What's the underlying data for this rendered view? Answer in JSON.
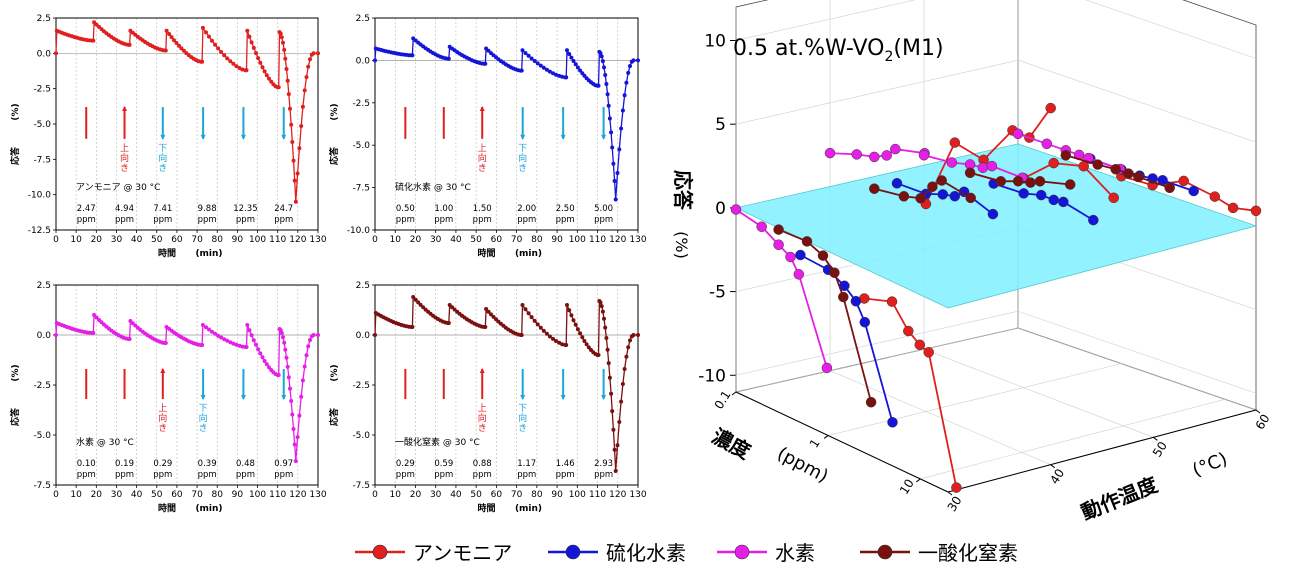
{
  "figure": {
    "legend": [
      {
        "label": "アンモニア",
        "color": "#e01f1f"
      },
      {
        "label": "硫化水素",
        "color": "#1515d8"
      },
      {
        "label": "水素",
        "color": "#e61fe6"
      },
      {
        "label": "一酸化窒素",
        "color": "#7a1111"
      }
    ]
  },
  "chart_data": [
    {
      "type": "line",
      "panel": "ammonia",
      "series": [
        {
          "name": "アンモニア @ 30 °C",
          "color": "#e01f1f"
        }
      ],
      "xlabel": "時間 (min)",
      "ylabel": "応答 (%)",
      "xlim": [
        0,
        130
      ],
      "ylim": [
        -12.5,
        2.5
      ],
      "xticks": [
        "0",
        "10",
        "20",
        "30",
        "40",
        "50",
        "60",
        "70",
        "80",
        "90",
        "100",
        "110",
        "120",
        "130"
      ],
      "yticks": [
        "2.5",
        "0.0",
        "-2.5",
        "-5.0",
        "-7.5",
        "-10.0",
        "-12.5"
      ],
      "inset_label": "アンモニア @ 30 °C",
      "concentrations": [
        "2.47",
        "4.94",
        "7.41",
        "9.88",
        "12.35",
        "24.7"
      ],
      "conc_unit": "ppm",
      "peaks": [
        1.6,
        2.2,
        1.6,
        1.6,
        1.8,
        1.6,
        1.5
      ],
      "ends": [
        0.9,
        0.6,
        0.2,
        -0.6,
        -1.2,
        -2.4,
        -10.5
      ],
      "arrows": [
        {
          "dir": "bar"
        },
        {
          "dir": "up",
          "label": "上向き"
        },
        {
          "dir": "down",
          "label": "下向き"
        },
        {
          "dir": "down"
        },
        {
          "dir": "down"
        },
        {
          "dir": "down"
        }
      ]
    },
    {
      "type": "line",
      "panel": "h2s",
      "series": [
        {
          "name": "硫化水素 @ 30 °C",
          "color": "#1515d8"
        }
      ],
      "xlabel": "時間 (min)",
      "ylabel": "応答 (%)",
      "xlim": [
        0,
        130
      ],
      "ylim": [
        -10.0,
        2.5
      ],
      "xticks": [
        "0",
        "10",
        "20",
        "30",
        "40",
        "50",
        "60",
        "70",
        "80",
        "90",
        "100",
        "110",
        "120",
        "130"
      ],
      "yticks": [
        "2.5",
        "0.0",
        "-2.5",
        "-5.0",
        "-7.5",
        "-10.0"
      ],
      "inset_label": "硫化水素 @ 30 °C",
      "concentrations": [
        "0.50",
        "1.00",
        "1.50",
        "2.00",
        "2.50",
        "5.00"
      ],
      "conc_unit": "ppm",
      "peaks": [
        0.7,
        1.3,
        0.8,
        0.7,
        0.6,
        0.6,
        0.5
      ],
      "ends": [
        0.3,
        0.1,
        -0.2,
        -0.6,
        -1.0,
        -1.5,
        -8.2
      ],
      "arrows": [
        {
          "dir": "bar"
        },
        {
          "dir": "bar"
        },
        {
          "dir": "up",
          "label": "上向き"
        },
        {
          "dir": "down",
          "label": "下向き"
        },
        {
          "dir": "down"
        },
        {
          "dir": "down"
        }
      ]
    },
    {
      "type": "line",
      "panel": "hydrogen",
      "series": [
        {
          "name": "水素 @ 30 °C",
          "color": "#e61fe6"
        }
      ],
      "xlabel": "時間 (min)",
      "ylabel": "応答 (%)",
      "xlim": [
        0,
        130
      ],
      "ylim": [
        -7.5,
        2.5
      ],
      "xticks": [
        "0",
        "10",
        "20",
        "30",
        "40",
        "50",
        "60",
        "70",
        "80",
        "90",
        "100",
        "110",
        "120",
        "130"
      ],
      "yticks": [
        "2.5",
        "0.0",
        "-2.5",
        "-5.0",
        "-7.5"
      ],
      "inset_label": "水素 @ 30 °C",
      "concentrations": [
        "0.10",
        "0.19",
        "0.29",
        "0.39",
        "0.48",
        "0.97"
      ],
      "conc_unit": "ppm",
      "peaks": [
        0.6,
        1.0,
        0.7,
        0.4,
        0.5,
        0.5,
        0.3
      ],
      "ends": [
        0.1,
        -0.2,
        -0.4,
        -0.5,
        -0.6,
        -2.0,
        -6.3
      ],
      "arrows": [
        {
          "dir": "bar"
        },
        {
          "dir": "bar"
        },
        {
          "dir": "up",
          "label": "上向き"
        },
        {
          "dir": "down",
          "label": "下向き"
        },
        {
          "dir": "down"
        },
        {
          "dir": "down"
        }
      ]
    },
    {
      "type": "line",
      "panel": "no",
      "series": [
        {
          "name": "一酸化窒素 @ 30 °C",
          "color": "#7a1111"
        }
      ],
      "xlabel": "時間 (min)",
      "ylabel": "応答 (%)",
      "xlim": [
        0,
        130
      ],
      "ylim": [
        -7.5,
        2.5
      ],
      "xticks": [
        "0",
        "10",
        "20",
        "30",
        "40",
        "50",
        "60",
        "70",
        "80",
        "90",
        "100",
        "110",
        "120",
        "130"
      ],
      "yticks": [
        "2.5",
        "0.0",
        "-2.5",
        "-5.0",
        "-7.5"
      ],
      "inset_label": "一酸化窒素 @ 30 °C",
      "concentrations": [
        "0.29",
        "0.59",
        "0.88",
        "1.17",
        "1.46",
        "2.93"
      ],
      "conc_unit": "ppm",
      "peaks": [
        1.1,
        1.9,
        1.5,
        1.3,
        1.5,
        1.5,
        1.7
      ],
      "ends": [
        0.4,
        0.6,
        0.4,
        0.0,
        -0.5,
        -1.0,
        -6.8
      ],
      "arrows": [
        {
          "dir": "bar"
        },
        {
          "dir": "bar"
        },
        {
          "dir": "up",
          "label": "上向き"
        },
        {
          "dir": "down",
          "label": "下向き"
        },
        {
          "dir": "down"
        },
        {
          "dir": "down"
        }
      ]
    },
    {
      "type": "scatter",
      "projection": "3d",
      "title": "0.5 at.%W-VO2(M1)",
      "zlabel": "応答 (%)",
      "xlabel": "動作温度 (°C)",
      "ylabel": "濃度 (ppm)",
      "zlim": [
        -11,
        12
      ],
      "xlim": [
        30,
        60
      ],
      "ylim": [
        0.1,
        20
      ],
      "ylog": true,
      "zticks": [
        "10",
        "5",
        "0",
        "-5",
        "-10"
      ],
      "xticks": [
        "30",
        "40",
        "50",
        "60"
      ],
      "yticks": [
        "0.1",
        "1",
        "10"
      ],
      "plane_z": 0,
      "plane_color": "#7ff0ff",
      "series": [
        {
          "name": "アンモニア",
          "color": "#e01f1f",
          "lines": [
            [
              [
                30,
                2.47,
                -1.8
              ],
              [
                30,
                4.94,
                -1.2
              ],
              [
                30,
                7.41,
                -2.5
              ],
              [
                30,
                9.88,
                -3.0
              ],
              [
                30,
                12.35,
                -3.2
              ],
              [
                30,
                24.7,
                -10.5
              ]
            ],
            [
              [
                40,
                1.0,
                1.4
              ],
              [
                40,
                2.0,
                5.8
              ],
              [
                40,
                4.0,
                5.5
              ],
              [
                40,
                8.0,
                8.0
              ],
              [
                40,
                12.0,
                8.0
              ],
              [
                40,
                20.0,
                10.3
              ]
            ],
            [
              [
                50,
                1.0,
                1.5
              ],
              [
                50,
                2.0,
                3.1
              ],
              [
                50,
                4.0,
                3.6
              ],
              [
                50,
                8.0,
                2.4
              ]
            ],
            [
              [
                60,
                1.0,
                0.2
              ],
              [
                60,
                2.0,
                0.3
              ],
              [
                60,
                4.0,
                1.2
              ],
              [
                60,
                8.0,
                0.9
              ],
              [
                60,
                12.0,
                0.6
              ],
              [
                60,
                20.0,
                0.9
              ]
            ]
          ]
        },
        {
          "name": "硫化水素",
          "color": "#1515d8",
          "lines": [
            [
              [
                30,
                0.5,
                -1.0
              ],
              [
                30,
                1.0,
                -1.1
              ],
              [
                30,
                1.5,
                -1.6
              ],
              [
                30,
                2.0,
                -2.2
              ],
              [
                30,
                2.5,
                -3.2
              ],
              [
                30,
                5.0,
                -8.4
              ]
            ],
            [
              [
                40,
                0.5,
                1.9
              ],
              [
                40,
                1.0,
                2.0
              ],
              [
                40,
                1.5,
                2.4
              ],
              [
                40,
                2.0,
                2.6
              ],
              [
                40,
                2.5,
                3.1
              ],
              [
                40,
                5.0,
                2.5
              ]
            ],
            [
              [
                50,
                0.5,
                0.5
              ],
              [
                50,
                1.0,
                0.6
              ],
              [
                50,
                1.5,
                0.9
              ],
              [
                50,
                2.0,
                0.9
              ],
              [
                50,
                2.5,
                1.0
              ],
              [
                50,
                5.0,
                0.6
              ]
            ],
            [
              [
                60,
                0.5,
                0.6
              ],
              [
                60,
                1.0,
                0.6
              ],
              [
                60,
                1.5,
                0.6
              ],
              [
                60,
                2.0,
                0.7
              ],
              [
                60,
                2.5,
                0.8
              ],
              [
                60,
                5.0,
                0.8
              ]
            ]
          ]
        },
        {
          "name": "水素",
          "color": "#e61fe6",
          "lines": [
            [
              [
                30,
                0.1,
                -0.1
              ],
              [
                30,
                0.19,
                -0.4
              ],
              [
                30,
                0.29,
                -1.0
              ],
              [
                30,
                0.39,
                -1.4
              ],
              [
                30,
                0.48,
                -2.2
              ],
              [
                30,
                0.97,
                -7.0
              ]
            ],
            [
              [
                40,
                0.1,
                2.0
              ],
              [
                40,
                0.19,
                2.6
              ],
              [
                40,
                0.29,
                2.9
              ],
              [
                40,
                0.39,
                3.3
              ],
              [
                40,
                0.48,
                3.9
              ],
              [
                40,
                0.97,
                4.4
              ]
            ],
            [
              [
                50,
                0.1,
                0.6
              ],
              [
                50,
                0.19,
                0.8
              ],
              [
                50,
                0.29,
                1.1
              ],
              [
                50,
                0.39,
                1.2
              ],
              [
                50,
                0.48,
                1.5
              ],
              [
                50,
                0.97,
                1.5
              ]
            ],
            [
              [
                60,
                0.1,
                0.6
              ],
              [
                60,
                0.19,
                0.6
              ],
              [
                60,
                0.29,
                0.6
              ],
              [
                60,
                0.39,
                0.6
              ],
              [
                60,
                0.48,
                0.6
              ],
              [
                60,
                0.97,
                0.6
              ]
            ]
          ]
        },
        {
          "name": "一酸化窒素",
          "color": "#7a1111",
          "lines": [
            [
              [
                30,
                0.29,
                -0.1
              ],
              [
                30,
                0.59,
                0.0
              ],
              [
                30,
                0.88,
                -0.4
              ],
              [
                30,
                1.17,
                -1.1
              ],
              [
                30,
                1.46,
                -2.3
              ],
              [
                30,
                2.93,
                -7.8
              ]
            ],
            [
              [
                40,
                0.29,
                1.0
              ],
              [
                40,
                0.59,
                1.3
              ],
              [
                40,
                0.88,
                1.6
              ],
              [
                40,
                1.17,
                2.6
              ],
              [
                40,
                1.46,
                3.2
              ],
              [
                40,
                2.93,
                2.9
              ]
            ],
            [
              [
                50,
                0.29,
                0.6
              ],
              [
                50,
                0.59,
                0.8
              ],
              [
                50,
                0.88,
                1.2
              ],
              [
                50,
                1.17,
                1.4
              ],
              [
                50,
                1.46,
                1.7
              ],
              [
                50,
                2.93,
                2.2
              ]
            ],
            [
              [
                60,
                0.29,
                0.3
              ],
              [
                60,
                0.59,
                0.4
              ],
              [
                60,
                0.88,
                0.5
              ],
              [
                60,
                1.17,
                0.5
              ],
              [
                60,
                1.46,
                0.5
              ],
              [
                60,
                2.93,
                0.5
              ]
            ]
          ]
        }
      ]
    }
  ]
}
